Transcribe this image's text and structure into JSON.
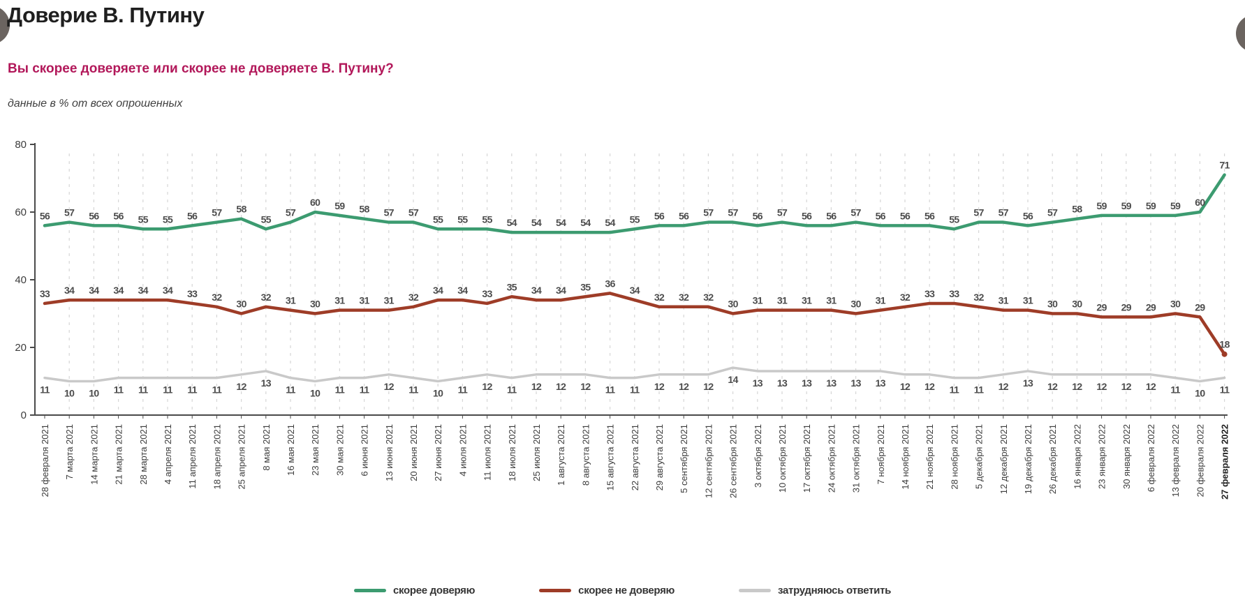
{
  "header": {
    "title": "Доверие В. Путину",
    "question": "Вы скорее доверяете или скорее не доверяете В. Путину?",
    "note": "данные в % от всех опрошенных",
    "question_color": "#b2185a"
  },
  "chart_data": {
    "type": "line",
    "title": "Доверие В. Путину",
    "xlabel": "",
    "ylabel": "данные в % от всех опрошенных",
    "ylim": [
      0,
      80
    ],
    "yticks": [
      0,
      20,
      40,
      60,
      80
    ],
    "grid": "vertical-dashed",
    "legend_position": "bottom",
    "categories": [
      "28 февраля 2021",
      "7 марта 2021",
      "14 марта 2021",
      "21 марта 2021",
      "28 марта 2021",
      "4 апреля 2021",
      "11 апреля 2021",
      "18 апреля 2021",
      "25 апреля 2021",
      "8 мая 2021",
      "16 мая 2021",
      "23 мая 2021",
      "30 мая 2021",
      "6 июня 2021",
      "13 июня 2021",
      "20 июня 2021",
      "27 июня 2021",
      "4 июля 2021",
      "11 июля 2021",
      "18 июля 2021",
      "25 июля 2021",
      "1 августа 2021",
      "8 августа 2021",
      "15 августа 2021",
      "22 августа 2021",
      "29 августа 2021",
      "5 сентября 2021",
      "12 сентября 2021",
      "26 сентября 2021",
      "3 октября 2021",
      "10 октября 2021",
      "17 октября 2021",
      "24 октября 2021",
      "31 октября 2021",
      "7 ноября 2021",
      "14 ноября 2021",
      "21 ноября 2021",
      "28 ноября 2021",
      "5 декабря 2021",
      "12 декабря 2021",
      "19 декабря 2021",
      "26 декабря 2021",
      "16 января 2022",
      "23 января 2022",
      "30 января 2022",
      "6 февраля 2022",
      "13 февраля 2022",
      "20 февраля 2022",
      "27 февраля 2022"
    ],
    "series": [
      {
        "name": "скорее доверяю",
        "color": "#3c9b70",
        "values": [
          56,
          57,
          56,
          56,
          55,
          55,
          56,
          57,
          58,
          55,
          57,
          60,
          59,
          58,
          57,
          57,
          55,
          55,
          55,
          54,
          54,
          54,
          54,
          54,
          55,
          56,
          56,
          57,
          57,
          56,
          57,
          56,
          56,
          57,
          56,
          56,
          56,
          55,
          57,
          57,
          56,
          57,
          58,
          59,
          59,
          59,
          59,
          60,
          71
        ]
      },
      {
        "name": "скорее не доверяю",
        "color": "#9e3c27",
        "values": [
          33,
          34,
          34,
          34,
          34,
          34,
          33,
          32,
          30,
          32,
          31,
          30,
          31,
          31,
          31,
          32,
          34,
          34,
          33,
          35,
          34,
          34,
          35,
          36,
          34,
          32,
          32,
          32,
          30,
          31,
          31,
          31,
          31,
          30,
          31,
          32,
          33,
          33,
          32,
          31,
          31,
          30,
          30,
          29,
          29,
          29,
          30,
          29,
          18
        ]
      },
      {
        "name": "затрудняюсь ответить",
        "color": "#c9c9c9",
        "values": [
          11,
          10,
          10,
          11,
          11,
          11,
          11,
          11,
          12,
          13,
          11,
          10,
          11,
          11,
          12,
          11,
          10,
          11,
          12,
          11,
          12,
          12,
          12,
          11,
          11,
          12,
          12,
          12,
          14,
          13,
          13,
          13,
          13,
          13,
          13,
          12,
          12,
          11,
          11,
          12,
          13,
          12,
          12,
          12,
          12,
          12,
          11,
          10,
          11
        ]
      }
    ]
  }
}
